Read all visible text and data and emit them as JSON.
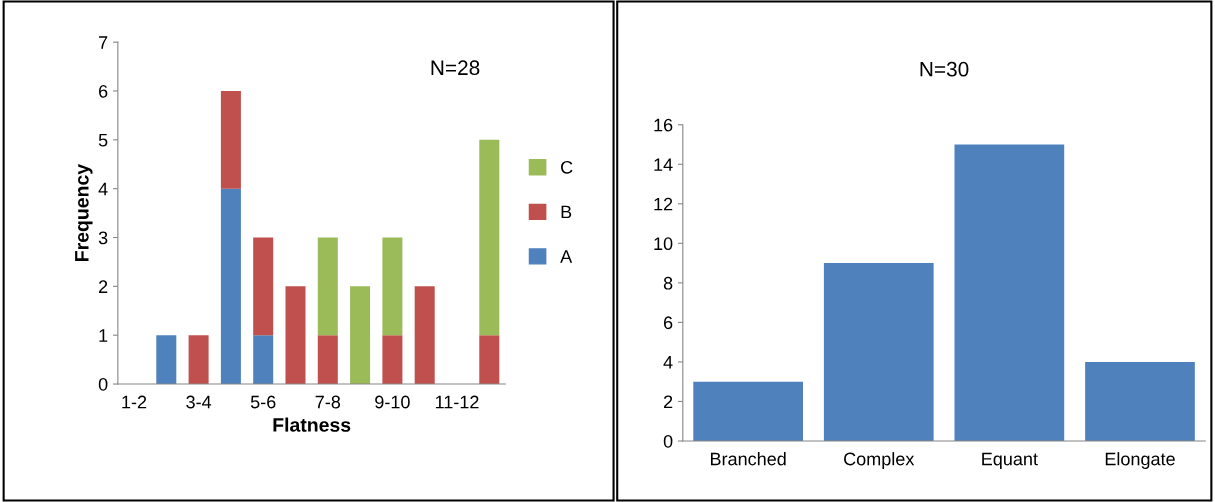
{
  "chart_data": [
    {
      "type": "bar",
      "stacked": true,
      "xlabel": "Flatness",
      "ylabel": "Frequency",
      "annotations": [
        "N=28"
      ],
      "categories": [
        "1-2",
        null,
        "3-4",
        null,
        "5-6",
        null,
        "7-8",
        null,
        "9-10",
        null,
        "11-12",
        null
      ],
      "series": [
        {
          "name": "A",
          "color": "#4f81bd",
          "values": [
            0,
            1,
            0,
            4,
            1,
            0,
            0,
            0,
            0,
            0,
            0,
            0
          ]
        },
        {
          "name": "B",
          "color": "#c0504d",
          "values": [
            0,
            0,
            1,
            2,
            2,
            2,
            1,
            0,
            1,
            2,
            0,
            1
          ]
        },
        {
          "name": "C",
          "color": "#9bbb59",
          "values": [
            0,
            0,
            0,
            0,
            0,
            0,
            2,
            2,
            2,
            0,
            0,
            4
          ]
        }
      ],
      "ylim": [
        0,
        7
      ],
      "yticks": [
        0,
        1,
        2,
        3,
        4,
        5,
        6,
        7
      ],
      "legend": "right",
      "grid": false
    },
    {
      "type": "bar",
      "annotations": [
        "N=30"
      ],
      "categories": [
        "Branched",
        "Complex",
        "Equant",
        "Elongate"
      ],
      "values": [
        3,
        9,
        15,
        4
      ],
      "color": "#4f81bd",
      "ylim": [
        0,
        16
      ],
      "yticks": [
        0,
        2,
        4,
        6,
        8,
        10,
        12,
        14,
        16
      ],
      "grid": false
    }
  ]
}
